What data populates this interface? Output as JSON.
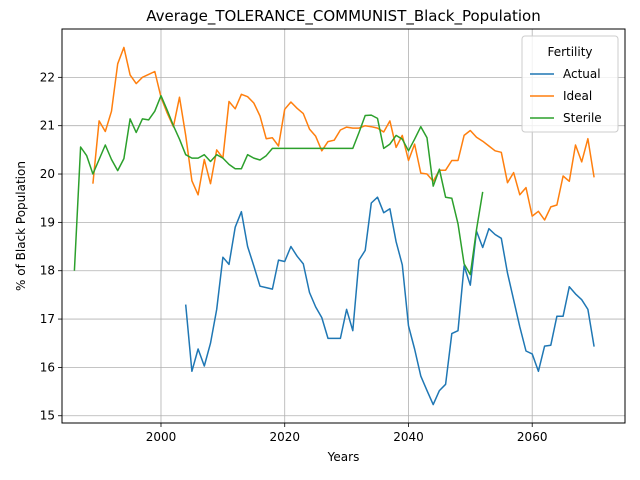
{
  "chart_data": {
    "type": "line",
    "title": "Average_TOLERANCE_COMMUNIST_Black_Population",
    "xlabel": "Years",
    "ylabel": "% of Black Population",
    "xlim": [
      1984,
      2075
    ],
    "ylim": [
      14.85,
      23.0
    ],
    "xticks": [
      2000,
      2020,
      2040,
      2060
    ],
    "yticks": [
      15,
      16,
      17,
      18,
      19,
      20,
      21,
      22
    ],
    "grid": true,
    "legend": {
      "title": "Fertility",
      "placement": "top-right"
    },
    "series": [
      {
        "name": "Actual",
        "color": "#1f77b4",
        "x": [
          2004,
          2005,
          2006,
          2007,
          2008,
          2009,
          2010,
          2011,
          2012,
          2013,
          2014,
          2015,
          2016,
          2017,
          2018,
          2019,
          2020,
          2021,
          2022,
          2023,
          2024,
          2025,
          2026,
          2027,
          2028,
          2029,
          2030,
          2031,
          2032,
          2033,
          2034,
          2035,
          2036,
          2037,
          2038,
          2039,
          2040,
          2041,
          2042,
          2043,
          2044,
          2045,
          2046,
          2047,
          2048,
          2049,
          2050,
          2051,
          2052,
          2053,
          2054,
          2055,
          2056,
          2057,
          2058,
          2059,
          2060,
          2061,
          2062,
          2063,
          2064,
          2065,
          2066,
          2067,
          2068,
          2069,
          2070
        ],
        "y": [
          17.3,
          15.92,
          16.38,
          16.03,
          16.5,
          17.2,
          18.28,
          18.13,
          18.9,
          19.22,
          18.5,
          18.1,
          17.68,
          17.65,
          17.62,
          18.22,
          18.19,
          18.5,
          18.3,
          18.14,
          17.55,
          17.25,
          17.03,
          16.6,
          16.6,
          16.6,
          17.2,
          16.76,
          18.22,
          18.42,
          19.4,
          19.52,
          19.2,
          19.28,
          18.6,
          18.12,
          16.86,
          16.38,
          15.82,
          15.52,
          15.23,
          15.52,
          15.65,
          16.7,
          16.76,
          18.1,
          17.7,
          18.82,
          18.48,
          18.87,
          18.75,
          18.67,
          17.95,
          17.4,
          16.84,
          16.34,
          16.28,
          15.92,
          16.44,
          16.46,
          17.06,
          17.06,
          17.67,
          17.52,
          17.4,
          17.2,
          16.43
        ]
      },
      {
        "name": "Ideal",
        "color": "#ff7f0e",
        "x": [
          1989,
          1990,
          1991,
          1992,
          1993,
          1994,
          1995,
          1996,
          1997,
          1998,
          1999,
          2000,
          2001,
          2002,
          2003,
          2004,
          2005,
          2006,
          2007,
          2008,
          2009,
          2010,
          2011,
          2012,
          2013,
          2014,
          2015,
          2016,
          2017,
          2018,
          2019,
          2020,
          2021,
          2022,
          2023,
          2024,
          2025,
          2026,
          2027,
          2028,
          2029,
          2030,
          2031,
          2032,
          2033,
          2034,
          2035,
          2036,
          2037,
          2038,
          2039,
          2040,
          2041,
          2042,
          2043,
          2044,
          2045,
          2046,
          2047,
          2048,
          2049,
          2050,
          2051,
          2052,
          2053,
          2054,
          2055,
          2056,
          2057,
          2058,
          2059,
          2060,
          2061,
          2062,
          2063,
          2064,
          2065,
          2066,
          2067,
          2068,
          2069,
          2070
        ],
        "y": [
          19.8,
          21.1,
          20.88,
          21.3,
          22.28,
          22.62,
          22.05,
          21.87,
          22.0,
          22.06,
          22.12,
          21.59,
          21.26,
          20.98,
          21.59,
          20.8,
          19.86,
          19.57,
          20.3,
          19.8,
          20.5,
          20.33,
          21.5,
          21.35,
          21.65,
          21.6,
          21.47,
          21.2,
          20.73,
          20.75,
          20.58,
          21.34,
          21.49,
          21.36,
          21.25,
          20.93,
          20.78,
          20.48,
          20.67,
          20.7,
          20.91,
          20.97,
          20.95,
          20.95,
          21.0,
          20.98,
          20.95,
          20.87,
          21.1,
          20.55,
          20.8,
          20.28,
          20.62,
          20.02,
          20.0,
          19.85,
          20.08,
          20.08,
          20.28,
          20.28,
          20.8,
          20.9,
          20.76,
          20.68,
          20.58,
          20.48,
          20.45,
          19.82,
          20.03,
          19.57,
          19.72,
          19.13,
          19.23,
          19.05,
          19.32,
          19.36,
          19.96,
          19.85,
          20.6,
          20.25,
          20.73,
          19.93
        ]
      },
      {
        "name": "Sterile",
        "color": "#2ca02c",
        "x": [
          1986,
          1987,
          1988,
          1989,
          1990,
          1991,
          1992,
          1993,
          1994,
          1995,
          1996,
          1997,
          1998,
          1999,
          2000,
          2001,
          2002,
          2003,
          2004,
          2005,
          2006,
          2007,
          2008,
          2009,
          2010,
          2011,
          2012,
          2013,
          2014,
          2015,
          2016,
          2017,
          2018,
          2019,
          2020,
          2021,
          2022,
          2023,
          2024,
          2025,
          2026,
          2027,
          2028,
          2029,
          2030,
          2031,
          2032,
          2033,
          2034,
          2035,
          2036,
          2037,
          2038,
          2039,
          2040,
          2041,
          2042,
          2043,
          2044,
          2045,
          2046,
          2047,
          2048,
          2049,
          2050,
          2051,
          2052
        ],
        "y": [
          18.0,
          20.56,
          20.38,
          20.0,
          20.3,
          20.6,
          20.3,
          20.07,
          20.32,
          21.14,
          20.86,
          21.14,
          21.12,
          21.3,
          21.62,
          21.32,
          21.0,
          20.72,
          20.4,
          20.33,
          20.33,
          20.4,
          20.26,
          20.4,
          20.33,
          20.2,
          20.11,
          20.11,
          20.4,
          20.33,
          20.29,
          20.38,
          20.53,
          20.53,
          20.53,
          20.53,
          20.53,
          20.53,
          20.53,
          20.53,
          20.53,
          20.53,
          20.53,
          20.53,
          20.53,
          20.53,
          20.86,
          21.21,
          21.22,
          21.15,
          20.53,
          20.62,
          20.8,
          20.72,
          20.48,
          20.72,
          20.98,
          20.75,
          19.75,
          20.1,
          19.52,
          19.5,
          18.97,
          18.14,
          17.92,
          18.85,
          19.63
        ]
      }
    ]
  }
}
